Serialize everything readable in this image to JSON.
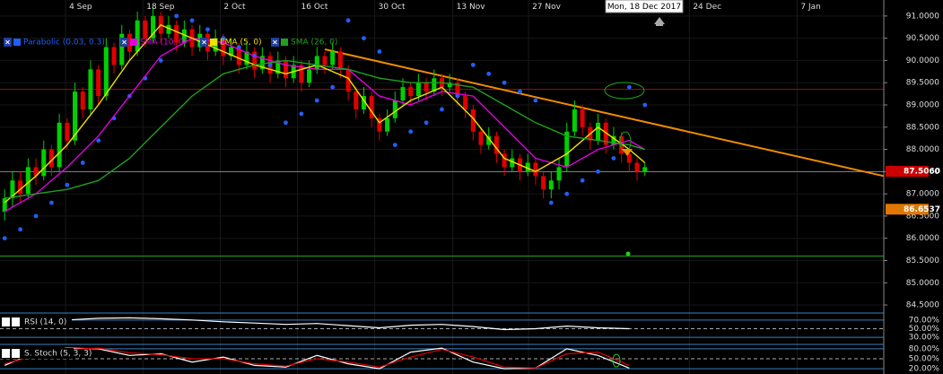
{
  "chart_data": {
    "type": "candlestick",
    "date_label": "Mon, 18 Dec 2017",
    "xlim": [
      -0.6,
      112.6
    ],
    "xticks": [
      {
        "value": 7.8,
        "label": "4 Sep"
      },
      {
        "value": 17.7,
        "label": "18 Sep"
      },
      {
        "value": 27.6,
        "label": "2 Oct"
      },
      {
        "value": 37.5,
        "label": "16 Oct"
      },
      {
        "value": 47.4,
        "label": "30 Oct"
      },
      {
        "value": 57.4,
        "label": "13 Nov"
      },
      {
        "value": 67.1,
        "label": "27 Nov"
      },
      {
        "value": 87.7,
        "label": "24 Dec"
      },
      {
        "value": 101.5,
        "label": "7 Jan"
      }
    ],
    "ylim": [
      84.4,
      91.36
    ],
    "yticks": [
      {
        "value": 91,
        "label": "91.0000"
      },
      {
        "value": 90.5,
        "label": "90.5000"
      },
      {
        "value": 90,
        "label": "90.0000"
      },
      {
        "value": 89.5,
        "label": "89.5000"
      },
      {
        "value": 89,
        "label": "89.0000"
      },
      {
        "value": 88.5,
        "label": "88.5000"
      },
      {
        "value": 88,
        "label": "88.0000"
      },
      {
        "value": 87.5,
        "label": "87.5000"
      },
      {
        "value": 87,
        "label": "87.0000"
      },
      {
        "value": 86.5,
        "label": "86.5000"
      },
      {
        "value": 86,
        "label": "86.0000"
      },
      {
        "value": 85.5,
        "label": "85.5000"
      },
      {
        "value": 85,
        "label": "85.0000"
      },
      {
        "value": 84.5,
        "label": "84.5000"
      }
    ],
    "up_color": "#00d000",
    "down_color": "#e00000",
    "open": [
      86.6,
      86.9,
      87.3,
      87.0,
      87.6,
      87.4,
      88.0,
      87.6,
      88.6,
      88.2,
      89.3,
      88.9,
      89.8,
      89.2,
      90.3,
      89.9,
      90.6,
      90.2,
      90.9,
      90.5,
      91.0,
      90.6,
      90.8,
      90.4,
      90.7,
      90.3,
      90.6,
      90.2,
      90.5,
      90.1,
      90.3,
      89.9,
      90.2,
      89.8,
      90.1,
      89.7,
      90.0,
      89.6,
      89.9,
      89.5,
      89.8,
      90.1,
      89.9,
      90.2,
      89.8,
      89.3,
      88.9,
      89.2,
      88.7,
      88.4,
      88.7,
      89.1,
      89.4,
      89.2,
      89.5,
      89.3,
      89.6,
      89.4,
      89.5,
      89.2,
      88.9,
      88.4,
      88.1,
      88.3,
      87.9,
      87.6,
      87.8,
      87.5,
      87.7,
      87.4,
      87.1,
      87.3,
      87.6,
      88.4,
      88.9,
      88.5,
      88.2,
      88.6,
      88.1,
      88.3,
      87.9,
      87.7,
      87.5
    ],
    "high": [
      87.1,
      87.5,
      87.5,
      87.8,
      87.8,
      88.2,
      88.1,
      88.8,
      88.7,
      89.5,
      89.4,
      90.0,
      89.9,
      90.5,
      90.4,
      90.8,
      90.7,
      91.1,
      91.0,
      91.2,
      91.1,
      91.0,
      90.9,
      90.9,
      90.8,
      90.8,
      90.7,
      90.7,
      90.6,
      90.5,
      90.4,
      90.4,
      90.3,
      90.3,
      90.2,
      90.2,
      90.1,
      90.1,
      90.0,
      90.0,
      90.3,
      90.2,
      90.4,
      90.3,
      89.9,
      89.4,
      89.4,
      89.3,
      88.8,
      88.9,
      89.3,
      89.6,
      89.5,
      89.7,
      89.6,
      89.8,
      89.7,
      89.7,
      89.6,
      89.3,
      89.0,
      88.5,
      88.5,
      88.4,
      88.0,
      88.0,
      87.9,
      87.9,
      87.8,
      87.5,
      87.5,
      87.8,
      88.6,
      89.1,
      89.0,
      88.6,
      88.8,
      88.7,
      88.5,
      88.4,
      88.0,
      87.8,
      87.7
    ],
    "low": [
      86.4,
      86.7,
      86.8,
      86.9,
      87.2,
      87.3,
      87.4,
      87.5,
      88.0,
      88.1,
      88.7,
      88.8,
      89.0,
      89.1,
      89.7,
      89.8,
      90.0,
      90.1,
      90.3,
      90.4,
      90.4,
      90.5,
      90.2,
      90.3,
      90.1,
      90.2,
      90.0,
      90.1,
      89.9,
      90.0,
      89.7,
      89.8,
      89.6,
      89.7,
      89.5,
      89.6,
      89.4,
      89.5,
      89.3,
      89.4,
      89.7,
      89.7,
      89.8,
      89.6,
      89.1,
      88.7,
      88.8,
      88.5,
      88.2,
      88.3,
      88.6,
      89.0,
      89.0,
      89.1,
      89.1,
      89.2,
      89.2,
      89.3,
      89.0,
      88.7,
      88.2,
      87.9,
      88.0,
      87.7,
      87.4,
      87.5,
      87.3,
      87.4,
      87.2,
      86.9,
      86.9,
      87.1,
      87.5,
      88.3,
      88.3,
      88.0,
      88.1,
      87.9,
      88.0,
      87.7,
      87.5,
      87.3,
      87.4
    ],
    "close": [
      86.9,
      87.3,
      87.0,
      87.6,
      87.4,
      88.0,
      87.6,
      88.6,
      88.2,
      89.3,
      88.9,
      89.8,
      89.2,
      90.3,
      89.9,
      90.6,
      90.2,
      90.9,
      90.5,
      91.0,
      90.6,
      90.8,
      90.4,
      90.7,
      90.3,
      90.6,
      90.2,
      90.5,
      90.1,
      90.3,
      89.9,
      90.2,
      89.8,
      90.1,
      89.7,
      90.0,
      89.6,
      89.9,
      89.5,
      89.8,
      90.1,
      89.9,
      90.2,
      89.8,
      89.3,
      88.9,
      89.2,
      88.7,
      88.4,
      88.7,
      89.1,
      89.4,
      89.2,
      89.5,
      89.3,
      89.6,
      89.4,
      89.5,
      89.2,
      88.9,
      88.4,
      88.1,
      88.3,
      87.9,
      87.6,
      87.8,
      87.5,
      87.7,
      87.4,
      87.1,
      87.3,
      87.6,
      88.4,
      88.9,
      88.5,
      88.2,
      88.6,
      88.1,
      88.3,
      87.9,
      87.7,
      87.5,
      87.6
    ],
    "series": [
      {
        "name": "Parabolic (0.03, 0.3)",
        "style": "dots",
        "color": "#1f5fff",
        "x": [
          0,
          2,
          4,
          6,
          8,
          10,
          12,
          14,
          16,
          18,
          20,
          22,
          24,
          26,
          28,
          30,
          32,
          34,
          36,
          38,
          40,
          42,
          44,
          46,
          48,
          50,
          52,
          54,
          56,
          58,
          60,
          62,
          64,
          66,
          68,
          70,
          72,
          74,
          76,
          78,
          80,
          82
        ],
        "values": [
          86.0,
          86.2,
          86.5,
          86.8,
          87.2,
          87.7,
          88.2,
          88.7,
          89.2,
          89.6,
          90.0,
          91.0,
          90.9,
          90.7,
          90.5,
          90.3,
          90.1,
          89.9,
          88.6,
          88.8,
          89.1,
          89.4,
          90.9,
          90.5,
          90.2,
          88.1,
          88.4,
          88.6,
          88.9,
          89.2,
          89.9,
          89.7,
          89.5,
          89.3,
          89.1,
          86.8,
          87.0,
          87.3,
          87.5,
          87.8,
          89.4,
          89.0
        ]
      },
      {
        "name": "SMA (10, 0)",
        "style": "line",
        "color": "#e000e0",
        "x": [
          0,
          4,
          8,
          12,
          16,
          20,
          24,
          28,
          32,
          36,
          40,
          44,
          48,
          52,
          56,
          60,
          64,
          68,
          72,
          76,
          80,
          82
        ],
        "values": [
          86.6,
          87.0,
          87.6,
          88.3,
          89.2,
          90.1,
          90.5,
          90.4,
          90.1,
          89.9,
          89.8,
          89.8,
          89.2,
          89.0,
          89.3,
          89.2,
          88.5,
          87.8,
          87.6,
          88.0,
          88.2,
          88.0
        ]
      },
      {
        "name": "EMA (5, 0)",
        "style": "line",
        "color": "#f0e000",
        "x": [
          0,
          4,
          8,
          12,
          16,
          20,
          24,
          28,
          32,
          36,
          40,
          44,
          48,
          52,
          56,
          60,
          64,
          68,
          72,
          76,
          80,
          82
        ],
        "values": [
          86.8,
          87.4,
          88.1,
          89.0,
          90.0,
          90.8,
          90.5,
          90.2,
          89.9,
          89.7,
          89.9,
          89.6,
          88.6,
          89.1,
          89.4,
          88.7,
          87.8,
          87.5,
          87.9,
          88.5,
          88.0,
          87.7
        ]
      },
      {
        "name": "SMA (26, 0)",
        "style": "line",
        "color": "#1fa01f",
        "x": [
          0,
          4,
          8,
          12,
          16,
          20,
          24,
          28,
          32,
          36,
          40,
          44,
          48,
          52,
          56,
          60,
          64,
          68,
          72,
          76,
          80,
          82
        ],
        "values": [
          86.9,
          87.0,
          87.1,
          87.3,
          87.8,
          88.5,
          89.2,
          89.7,
          89.9,
          90.0,
          89.9,
          89.8,
          89.6,
          89.5,
          89.5,
          89.4,
          89.0,
          88.6,
          88.3,
          88.2,
          88.1,
          88.0
        ]
      }
    ],
    "levels": [
      {
        "value": 89.35,
        "color": "#a01010"
      },
      {
        "value": 87.5,
        "color": "#888888"
      },
      {
        "value": 85.6,
        "color": "#1fa01f"
      }
    ],
    "trendline": {
      "color": "#f08c00",
      "x": [
        41,
        112.6
      ],
      "values": [
        90.25,
        87.4
      ]
    },
    "price_labels": [
      {
        "value": 87.506,
        "label": "87.5060",
        "color": "#cc0000"
      },
      {
        "value": 86.6537,
        "label": "86.6537",
        "color": "#e07800"
      }
    ],
    "indicators": [
      {
        "name": "RSI (14, 0)",
        "ylim": [
          20,
          80
        ],
        "yticks": [
          {
            "value": 70,
            "label": "70.00%"
          },
          {
            "value": 50,
            "label": "50.00%"
          },
          {
            "value": 30,
            "label": "30.00%"
          }
        ],
        "lines": [
          {
            "color": "#ffffff",
            "x": [
              0,
              4,
              8,
              12,
              16,
              20,
              24,
              28,
              32,
              36,
              40,
              44,
              48,
              52,
              56,
              60,
              64,
              68,
              72,
              76,
              80
            ],
            "values": [
              62,
              66,
              70,
              74,
              75,
              73,
              70,
              66,
              63,
              60,
              62,
              57,
              52,
              58,
              60,
              55,
              48,
              50,
              56,
              52,
              50
            ]
          }
        ]
      },
      {
        "name": "S. Stoch (5, 3, 3)",
        "ylim": [
          15,
          85
        ],
        "yticks": [
          {
            "value": 80,
            "label": "80.00%"
          },
          {
            "value": 50,
            "label": "50.00%"
          },
          {
            "value": 20,
            "label": "20.00%"
          }
        ],
        "lines": [
          {
            "color": "#ffffff",
            "x": [
              0,
              4,
              8,
              12,
              16,
              20,
              24,
              28,
              32,
              36,
              40,
              44,
              48,
              52,
              56,
              60,
              64,
              68,
              72,
              76,
              80
            ],
            "values": [
              30,
              70,
              82,
              80,
              60,
              65,
              40,
              55,
              30,
              25,
              60,
              35,
              20,
              70,
              82,
              40,
              20,
              22,
              80,
              60,
              22
            ]
          },
          {
            "color": "#e00000",
            "x": [
              0,
              4,
              8,
              12,
              16,
              20,
              24,
              28,
              32,
              36,
              40,
              44,
              48,
              52,
              56,
              60,
              64,
              68,
              72,
              76,
              80
            ],
            "values": [
              35,
              60,
              78,
              82,
              68,
              62,
              50,
              50,
              35,
              28,
              50,
              40,
              25,
              55,
              78,
              55,
              25,
              22,
              65,
              70,
              30
            ]
          }
        ]
      }
    ]
  }
}
